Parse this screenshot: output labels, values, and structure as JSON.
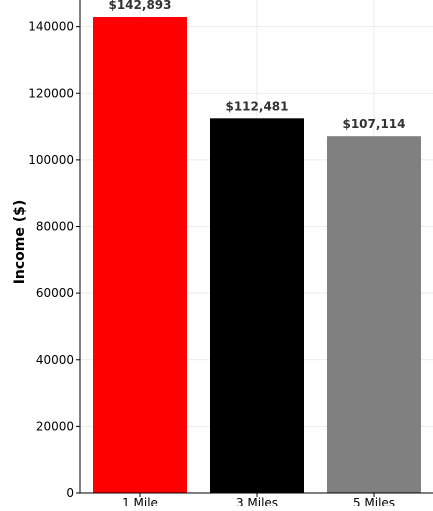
{
  "chart_data": {
    "type": "bar",
    "categories": [
      "1 Mile",
      "3 Miles",
      "5 Miles"
    ],
    "values": [
      142893,
      112481,
      107114
    ],
    "value_labels": [
      "$142,893",
      "$112,481",
      "$107,114"
    ],
    "colors": [
      "#ff0000",
      "#000000",
      "#808080"
    ],
    "ylabel": "Income ($)",
    "xlabel": "",
    "title": "",
    "ylim": [
      0,
      148000
    ],
    "yticks": [
      0,
      20000,
      40000,
      60000,
      80000,
      100000,
      120000,
      140000
    ],
    "ytick_labels": [
      "0",
      "20000",
      "40000",
      "60000",
      "80000",
      "100000",
      "120000",
      "140000"
    ],
    "grid": true,
    "legend": "none"
  }
}
